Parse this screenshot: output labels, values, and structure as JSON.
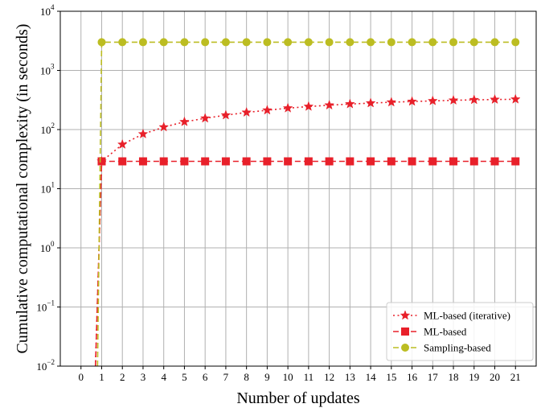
{
  "chart_data": {
    "type": "line",
    "title": "",
    "xlabel": "Number of updates",
    "ylabel": "Cumulative computational complexity (in seconds)",
    "xlim": [
      -1,
      22
    ],
    "ylim": [
      0.01,
      10000
    ],
    "yscale": "log",
    "grid": true,
    "legend_position": "lower-right",
    "x_ticks": [
      "0",
      "1",
      "2",
      "3",
      "4",
      "5",
      "6",
      "7",
      "8",
      "9",
      "10",
      "11",
      "12",
      "13",
      "14",
      "15",
      "16",
      "17",
      "18",
      "19",
      "20",
      "21"
    ],
    "y_ticks": [
      {
        "base": "10",
        "exp": "−2",
        "value": 0.01
      },
      {
        "base": "10",
        "exp": "−1",
        "value": 0.1
      },
      {
        "base": "10",
        "exp": "0",
        "value": 1
      },
      {
        "base": "10",
        "exp": "1",
        "value": 10
      },
      {
        "base": "10",
        "exp": "2",
        "value": 100
      },
      {
        "base": "10",
        "exp": "3",
        "value": 1000
      },
      {
        "base": "10",
        "exp": "4",
        "value": 10000
      }
    ],
    "series": [
      {
        "name": "ML-based (iterative)",
        "color": "#e8202a",
        "linestyle": "dotted",
        "marker": "star",
        "x": [
          0.7,
          1,
          2,
          3,
          4,
          5,
          6,
          7,
          8,
          9,
          10,
          11,
          12,
          13,
          14,
          15,
          16,
          17,
          18,
          19,
          20,
          21
        ],
        "y": [
          0.01,
          29,
          56,
          84,
          110,
          135,
          155,
          175,
          195,
          212,
          230,
          245,
          258,
          270,
          280,
          290,
          298,
          305,
          312,
          318,
          322,
          325
        ]
      },
      {
        "name": "ML-based",
        "color": "#e8202a",
        "linestyle": "dashed",
        "marker": "square",
        "x": [
          0.7,
          1,
          2,
          3,
          4,
          5,
          6,
          7,
          8,
          9,
          10,
          11,
          12,
          13,
          14,
          15,
          16,
          17,
          18,
          19,
          20,
          21
        ],
        "y": [
          0.01,
          29,
          29,
          29,
          29,
          29,
          29,
          29,
          29,
          29,
          29,
          29,
          29,
          29,
          29,
          29,
          29,
          29,
          29,
          29,
          29,
          29
        ]
      },
      {
        "name": "Sampling-based",
        "color": "#bcbd22",
        "linestyle": "dashed",
        "marker": "circle",
        "x": [
          0.8,
          1,
          2,
          3,
          4,
          5,
          6,
          7,
          8,
          9,
          10,
          11,
          12,
          13,
          14,
          15,
          16,
          17,
          18,
          19,
          20,
          21
        ],
        "y": [
          0.01,
          3000,
          3000,
          3000,
          3000,
          3000,
          3000,
          3000,
          3000,
          3000,
          3000,
          3000,
          3000,
          3000,
          3000,
          3000,
          3000,
          3000,
          3000,
          3000,
          3000,
          3000
        ]
      }
    ]
  }
}
